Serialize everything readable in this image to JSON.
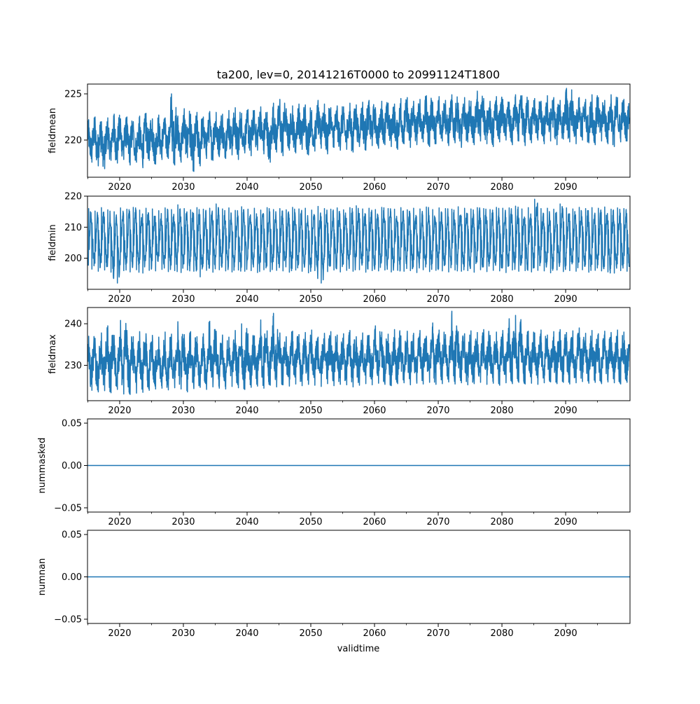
{
  "chart_data": {
    "type": "line",
    "title": "ta200, lev=0, 20141216T0000 to 20991124T1800",
    "xlabel": "validtime",
    "xlim": [
      2014.95,
      2100.1
    ],
    "xticks": [
      2020,
      2030,
      2040,
      2050,
      2060,
      2070,
      2080,
      2090
    ],
    "x_minor_ticks": [
      2015,
      2025,
      2035,
      2045,
      2055,
      2065,
      2075,
      2085,
      2095
    ],
    "line_color": "#1f77b4",
    "grid": false,
    "x_start_year": 2015,
    "panels": [
      {
        "ylabel": "fieldmean",
        "ylim": [
          215.98,
          226.06
        ],
        "yticks": [
          220,
          225
        ],
        "ytick_labels": [
          "220",
          "225"
        ],
        "seasonal_weight": 0.35,
        "yearly_min": [
          217.6,
          217.2,
          216.9,
          217.8,
          217.5,
          217.9,
          217.3,
          217.6,
          217.0,
          217.8,
          217.4,
          217.9,
          218.0,
          217.3,
          217.6,
          218.1,
          216.6,
          217.2,
          218.0,
          217.8,
          218.2,
          218.0,
          218.4,
          217.9,
          218.6,
          218.3,
          218.9,
          218.5,
          217.6,
          218.7,
          218.3,
          218.9,
          218.6,
          219.0,
          218.4,
          218.8,
          219.1,
          218.5,
          219.2,
          218.9,
          219.0,
          218.7,
          219.3,
          218.9,
          219.4,
          219.1,
          219.5,
          219.3,
          219.0,
          219.6,
          219.2,
          219.5,
          219.8,
          219.3,
          219.6,
          219.9,
          219.4,
          219.7,
          219.2,
          219.8,
          219.5,
          219.9,
          219.6,
          219.3,
          219.8,
          220.0,
          219.5,
          219.9,
          219.4,
          219.7,
          220.0,
          219.6,
          219.9,
          219.5,
          220.1,
          219.8,
          219.6,
          220.0,
          219.7,
          219.5,
          219.9,
          219.6,
          219.3,
          219.8,
          219.9
        ],
        "yearly_max": [
          222.2,
          222.5,
          222.0,
          222.4,
          222.8,
          222.3,
          222.5,
          222.0,
          222.6,
          222.9,
          222.3,
          222.7,
          222.4,
          225.0,
          222.6,
          223.4,
          222.8,
          223.0,
          222.5,
          223.1,
          223.0,
          222.8,
          223.2,
          223.5,
          222.9,
          223.3,
          223.2,
          223.6,
          223.0,
          224.0,
          224.4,
          223.4,
          223.7,
          223.9,
          223.8,
          223.2,
          224.3,
          223.9,
          223.5,
          223.7,
          223.6,
          224.0,
          223.8,
          224.1,
          224.3,
          223.5,
          224.2,
          224.0,
          223.9,
          224.5,
          224.6,
          224.2,
          224.4,
          224.8,
          224.1,
          224.7,
          224.3,
          224.9,
          224.0,
          224.6,
          224.2,
          225.3,
          224.5,
          224.2,
          224.7,
          224.4,
          224.1,
          224.9,
          224.8,
          224.3,
          224.5,
          224.2,
          224.8,
          224.6,
          224.3,
          225.6,
          224.2,
          224.6,
          224.4,
          224.9,
          224.6,
          224.3,
          224.9,
          224.6,
          224.4
        ]
      },
      {
        "ylabel": "fieldmin",
        "ylim": [
          190,
          220
        ],
        "yticks": [
          200,
          210,
          220
        ],
        "ytick_labels": [
          "200",
          "210",
          "220"
        ],
        "seasonal_weight": 0.75,
        "yearly_min": [
          196.5,
          195.8,
          196.2,
          195.5,
          192.0,
          196.0,
          195.6,
          196.3,
          195.2,
          196.1,
          195.9,
          196.4,
          195.7,
          196.0,
          195.4,
          196.2,
          195.8,
          194.0,
          196.1,
          195.5,
          196.3,
          195.9,
          195.6,
          196.2,
          195.8,
          196.0,
          195.4,
          196.3,
          195.7,
          196.1,
          195.9,
          195.5,
          196.2,
          195.8,
          195.3,
          196.0,
          192.0,
          195.7,
          196.2,
          195.6,
          196.1,
          195.8,
          196.3,
          195.5,
          196.0,
          195.9,
          196.2,
          195.6,
          196.1,
          195.8,
          196.0,
          195.4,
          196.3,
          195.7,
          196.1,
          195.9,
          195.6,
          196.2,
          195.8,
          196.0,
          195.5,
          196.3,
          195.7,
          196.1,
          195.9,
          195.4,
          196.2,
          195.8,
          196.0,
          195.6,
          196.1,
          195.9,
          195.3,
          196.2,
          195.7,
          196.0,
          195.8,
          196.3,
          195.5,
          196.1,
          195.9,
          195.6,
          195.2,
          196.0,
          195.8
        ],
        "yearly_max": [
          216.0,
          215.2,
          216.3,
          215.6,
          215.0,
          216.2,
          215.8,
          216.4,
          215.5,
          216.1,
          215.9,
          215.3,
          216.2,
          215.7,
          217.2,
          216.0,
          215.6,
          216.3,
          215.8,
          216.1,
          217.5,
          215.9,
          216.2,
          215.4,
          216.6,
          215.8,
          216.1,
          215.5,
          216.3,
          215.7,
          216.0,
          215.6,
          216.4,
          215.9,
          216.1,
          215.5,
          216.7,
          216.0,
          215.8,
          216.2,
          215.6,
          216.3,
          216.9,
          215.9,
          216.1,
          215.7,
          216.4,
          216.0,
          215.8,
          216.3,
          215.6,
          216.1,
          215.9,
          216.5,
          215.7,
          216.2,
          216.0,
          215.8,
          216.6,
          216.1,
          215.9,
          216.3,
          216.0,
          215.7,
          216.4,
          216.1,
          216.2,
          216.8,
          215.9,
          216.3,
          219.0,
          216.0,
          216.1,
          215.8,
          217.5,
          216.2,
          215.9,
          216.4,
          216.0,
          216.3,
          216.1,
          216.5,
          215.8,
          216.2,
          216.0
        ]
      },
      {
        "ylabel": "fieldmax",
        "ylim": [
          221.5,
          243.9
        ],
        "yticks": [
          230,
          240
        ],
        "ytick_labels": [
          "230",
          "240"
        ],
        "seasonal_weight": 0.4,
        "yearly_min": [
          224.0,
          223.6,
          223.9,
          223.4,
          224.2,
          223.1,
          223.0,
          223.3,
          223.5,
          224.0,
          224.3,
          224.5,
          224.1,
          224.6,
          224.3,
          223.6,
          224.4,
          224.7,
          224.2,
          224.8,
          224.5,
          224.3,
          224.9,
          224.6,
          224.2,
          224.7,
          225.0,
          224.5,
          225.2,
          224.8,
          225.3,
          225.0,
          225.5,
          225.1,
          225.4,
          225.2,
          224.9,
          225.6,
          225.1,
          225.4,
          225.3,
          224.8,
          225.2,
          225.6,
          225.3,
          225.7,
          225.4,
          225.1,
          225.6,
          225.8,
          225.3,
          225.7,
          225.5,
          225.9,
          225.4,
          225.6,
          226.0,
          225.5,
          225.8,
          225.3,
          225.6,
          225.9,
          225.4,
          225.7,
          225.2,
          225.8,
          225.6,
          225.9,
          225.5,
          225.7,
          225.4,
          225.8,
          226.0,
          225.6,
          225.9,
          225.5,
          225.8,
          226.1,
          225.7,
          225.9,
          225.6,
          226.0,
          225.8,
          225.5,
          225.9
        ],
        "yearly_max": [
          237.0,
          236.5,
          237.8,
          239.5,
          237.2,
          240.8,
          238.4,
          236.9,
          238.1,
          237.6,
          237.2,
          236.8,
          238.0,
          237.5,
          240.5,
          237.4,
          238.1,
          236.9,
          237.6,
          240.6,
          238.2,
          237.3,
          236.8,
          238.4,
          240.0,
          237.6,
          237.1,
          240.9,
          238.3,
          242.5,
          237.8,
          236.9,
          238.2,
          237.4,
          237.9,
          238.5,
          236.8,
          237.7,
          238.1,
          237.3,
          237.6,
          238.4,
          236.9,
          237.8,
          237.2,
          239.5,
          238.0,
          237.5,
          238.6,
          237.1,
          238.2,
          237.7,
          238.4,
          237.0,
          240.2,
          238.5,
          237.4,
          243.0,
          238.1,
          237.6,
          238.3,
          237.9,
          238.6,
          237.2,
          238.0,
          238.4,
          241.2,
          242.0,
          237.5,
          238.2,
          237.8,
          238.5,
          237.3,
          238.1,
          238.6,
          237.9,
          238.3,
          239.0,
          237.7,
          238.4,
          237.6,
          238.2,
          237.9,
          238.5,
          238.0
        ]
      },
      {
        "ylabel": "nummasked",
        "ylim": [
          -0.055,
          0.055
        ],
        "yticks": [
          -0.05,
          0,
          0.05
        ],
        "ytick_labels": [
          "−0.05",
          "0.00",
          "0.05"
        ],
        "constant_value": 0
      },
      {
        "ylabel": "numnan",
        "ylim": [
          -0.055,
          0.055
        ],
        "yticks": [
          -0.05,
          0,
          0.05
        ],
        "ytick_labels": [
          "−0.05",
          "0.00",
          "0.05"
        ],
        "constant_value": 0
      }
    ]
  }
}
